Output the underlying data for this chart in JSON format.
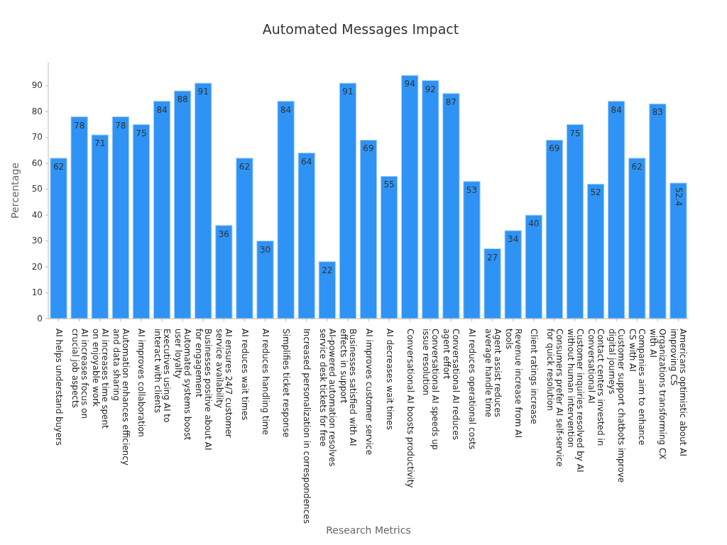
{
  "chart_data": {
    "type": "bar",
    "title": "Automated Messages Impact",
    "xlabel": "Research Metrics",
    "ylabel": "Percentage",
    "categories": [
      "AI helps understand buyers",
      "AI increases focus on\ncrucial job aspects",
      "AI increases time spent\non enjoyable work",
      "Automation enhances efficiency\nand data sharing",
      "AI improves collaboration",
      "Executives using AI to\ninteract with clients",
      "Automated systems boost\nuser loyalty",
      "Businesses positive about AI\nfor engagement",
      "AI ensures 24/7 customer\nservice availability",
      "AI reduces wait times",
      "AI reduces handling time",
      "Simplifies ticket response",
      "Increased personalization in correspondences",
      "AI-powered automation resolves\nservice desk tickets for free",
      "Businesses satisfied with AI\neffects in support",
      "AI improves customer service",
      "AI decreases wait times",
      "Conversational AI boosts productivity",
      "Conversational AI speeds up\nissue resolution",
      "Conversational AI reduces\nagent effort",
      "AI reduces operational costs",
      "Agent assist reduces\naverage handle time",
      "Revenue increase from AI\ntools",
      "Client ratings increase",
      "Consumers prefer AI self-service\nfor quick resolution",
      "Customer inquiries resolved by AI\nwithout human intervention",
      "Contact centers invested in\nConversational AI",
      "Customer support chatbots improve\ndigital journeys",
      "Companies aim to enhance\nCS with AI",
      "Organizations transforming CX\nwith AI",
      "Americans optimistic about AI\nimproving CS"
    ],
    "values": [
      62,
      78,
      71,
      78,
      75,
      84,
      88,
      91,
      36,
      62,
      30,
      84,
      64,
      22,
      91,
      69,
      55,
      94,
      92,
      87,
      53,
      27,
      34,
      40,
      69,
      75,
      52,
      84,
      62,
      83,
      52.4
    ],
    "color": "#2e93f5",
    "ylim": [
      0,
      99
    ],
    "yticks": [
      0,
      10,
      20,
      30,
      40,
      50,
      60,
      70,
      80,
      90
    ],
    "data_labels": true,
    "grid": false
  }
}
